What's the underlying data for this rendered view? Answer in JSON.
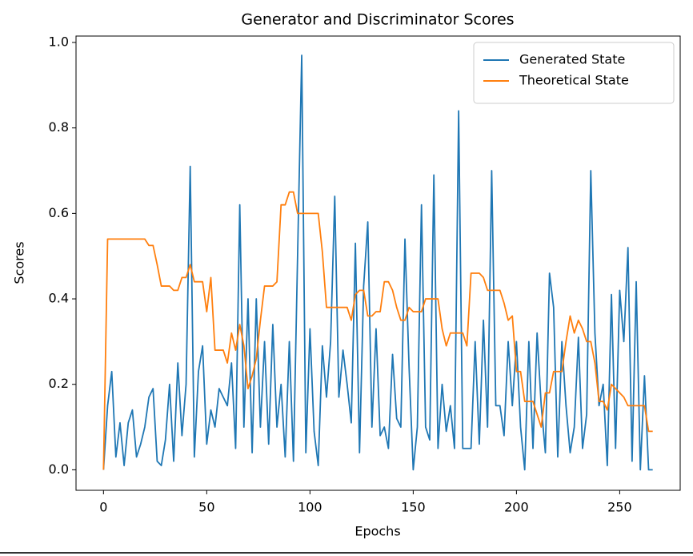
{
  "chart_data": {
    "type": "line",
    "title": "Generator and Discriminator Scores",
    "xlabel": "Epochs",
    "ylabel": "Scores",
    "x": [
      0,
      2,
      4,
      6,
      8,
      10,
      12,
      14,
      16,
      18,
      20,
      22,
      24,
      26,
      28,
      30,
      32,
      34,
      36,
      38,
      40,
      42,
      44,
      46,
      48,
      50,
      52,
      54,
      56,
      58,
      60,
      62,
      64,
      66,
      68,
      70,
      72,
      74,
      76,
      78,
      80,
      82,
      84,
      86,
      88,
      90,
      92,
      94,
      96,
      98,
      100,
      102,
      104,
      106,
      108,
      110,
      112,
      114,
      116,
      118,
      120,
      122,
      124,
      126,
      128,
      130,
      132,
      134,
      136,
      138,
      140,
      142,
      144,
      146,
      148,
      150,
      152,
      154,
      156,
      158,
      160,
      162,
      164,
      166,
      168,
      170,
      172,
      174,
      176,
      178,
      180,
      182,
      184,
      186,
      188,
      190,
      192,
      194,
      196,
      198,
      200,
      202,
      204,
      206,
      208,
      210,
      212,
      214,
      216,
      218,
      220,
      222,
      224,
      226,
      228,
      230,
      232,
      234,
      236,
      238,
      240,
      242,
      244,
      246,
      248,
      250,
      252,
      254,
      256,
      258,
      260,
      262,
      264,
      266
    ],
    "series": [
      {
        "name": "Generated State",
        "color": "#1f77b4",
        "values": [
          0.0,
          0.15,
          0.23,
          0.03,
          0.11,
          0.01,
          0.11,
          0.14,
          0.03,
          0.06,
          0.1,
          0.17,
          0.19,
          0.02,
          0.01,
          0.07,
          0.2,
          0.02,
          0.25,
          0.08,
          0.2,
          0.71,
          0.03,
          0.23,
          0.29,
          0.06,
          0.14,
          0.1,
          0.19,
          0.17,
          0.15,
          0.25,
          0.05,
          0.62,
          0.1,
          0.4,
          0.04,
          0.4,
          0.1,
          0.3,
          0.06,
          0.34,
          0.1,
          0.2,
          0.03,
          0.3,
          0.02,
          0.5,
          0.97,
          0.04,
          0.33,
          0.09,
          0.01,
          0.29,
          0.17,
          0.3,
          0.64,
          0.17,
          0.28,
          0.2,
          0.11,
          0.53,
          0.04,
          0.43,
          0.58,
          0.1,
          0.33,
          0.08,
          0.1,
          0.05,
          0.27,
          0.12,
          0.1,
          0.54,
          0.24,
          0.0,
          0.1,
          0.62,
          0.1,
          0.07,
          0.69,
          0.05,
          0.2,
          0.09,
          0.15,
          0.05,
          0.84,
          0.05,
          0.05,
          0.05,
          0.3,
          0.06,
          0.35,
          0.1,
          0.7,
          0.15,
          0.15,
          0.08,
          0.3,
          0.15,
          0.3,
          0.1,
          0.0,
          0.3,
          0.05,
          0.32,
          0.15,
          0.04,
          0.46,
          0.38,
          0.03,
          0.3,
          0.15,
          0.04,
          0.1,
          0.31,
          0.05,
          0.13,
          0.7,
          0.32,
          0.15,
          0.2,
          0.01,
          0.41,
          0.05,
          0.42,
          0.3,
          0.52,
          0.02,
          0.44,
          0.0,
          0.22,
          0.0,
          0.0
        ]
      },
      {
        "name": "Theoretical State",
        "color": "#ff7f0e",
        "values": [
          0.0,
          0.54,
          0.54,
          0.54,
          0.54,
          0.54,
          0.54,
          0.54,
          0.54,
          0.54,
          0.54,
          0.525,
          0.525,
          0.48,
          0.43,
          0.43,
          0.43,
          0.42,
          0.42,
          0.45,
          0.45,
          0.48,
          0.44,
          0.44,
          0.44,
          0.37,
          0.45,
          0.28,
          0.28,
          0.28,
          0.25,
          0.32,
          0.28,
          0.34,
          0.29,
          0.19,
          0.22,
          0.26,
          0.35,
          0.43,
          0.43,
          0.43,
          0.44,
          0.62,
          0.62,
          0.65,
          0.65,
          0.6,
          0.6,
          0.6,
          0.6,
          0.6,
          0.6,
          0.51,
          0.38,
          0.38,
          0.38,
          0.38,
          0.38,
          0.38,
          0.35,
          0.41,
          0.42,
          0.42,
          0.36,
          0.36,
          0.37,
          0.37,
          0.44,
          0.44,
          0.42,
          0.38,
          0.35,
          0.35,
          0.38,
          0.37,
          0.37,
          0.37,
          0.4,
          0.4,
          0.4,
          0.4,
          0.33,
          0.29,
          0.32,
          0.32,
          0.32,
          0.32,
          0.29,
          0.46,
          0.46,
          0.46,
          0.45,
          0.42,
          0.42,
          0.42,
          0.42,
          0.39,
          0.35,
          0.36,
          0.23,
          0.23,
          0.16,
          0.16,
          0.16,
          0.13,
          0.1,
          0.18,
          0.18,
          0.23,
          0.23,
          0.23,
          0.3,
          0.36,
          0.32,
          0.35,
          0.33,
          0.3,
          0.3,
          0.25,
          0.16,
          0.16,
          0.14,
          0.2,
          0.19,
          0.18,
          0.17,
          0.15,
          0.15,
          0.15,
          0.15,
          0.15,
          0.09,
          0.09
        ]
      }
    ],
    "xlim": [
      -13.3,
      279.3
    ],
    "ylim": [
      -0.048,
      1.015
    ],
    "xticks": [
      0,
      50,
      100,
      150,
      200,
      250
    ],
    "yticks": [
      {
        "value": 0,
        "label": "0.0"
      },
      0.2,
      0.4,
      0.6,
      0.8,
      {
        "value": 1,
        "label": "1.0"
      }
    ],
    "legend": "upper right",
    "grid": false
  }
}
